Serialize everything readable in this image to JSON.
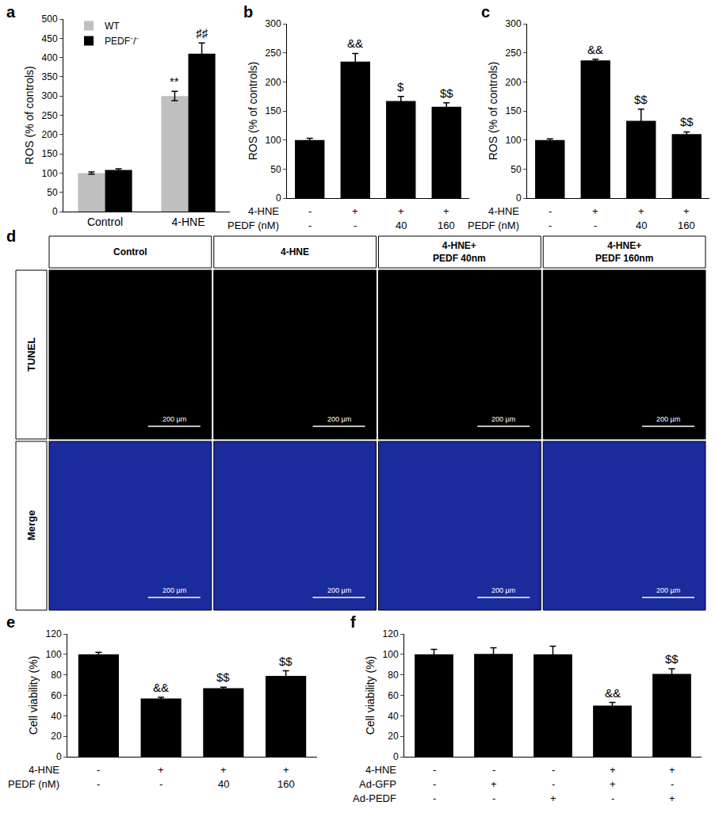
{
  "chart_data": [
    {
      "panel": "a",
      "type": "bar",
      "y_label": "ROS (% of controls)",
      "categories": [
        "Control",
        "4-HNE"
      ],
      "series": [
        {
          "name": "WT",
          "color": "#bfbfbf",
          "values": [
            100,
            300
          ],
          "errors": [
            3,
            12
          ],
          "significance": [
            null,
            "**"
          ]
        },
        {
          "name": "PEDF⁻/⁻",
          "color": "#000000",
          "values": [
            108,
            410
          ],
          "errors": [
            3,
            28
          ],
          "significance": [
            null,
            "♯♯"
          ]
        }
      ],
      "ylim": [
        0,
        500
      ],
      "yticks": [
        0,
        50,
        100,
        150,
        200,
        250,
        300,
        350,
        400,
        450,
        500
      ],
      "legend": "upper left",
      "grid": false
    },
    {
      "panel": "b",
      "type": "bar",
      "y_label": "ROS (% of controls)",
      "categories": [
        null,
        null,
        null,
        null
      ],
      "color": "#000000",
      "values": [
        100,
        235,
        167,
        157
      ],
      "errors": [
        3,
        14,
        8,
        7
      ],
      "significance": [
        null,
        "&&",
        "$",
        "$$"
      ],
      "treatments": [
        {
          "label": "4-HNE",
          "values": [
            "-",
            "+",
            "+",
            "+"
          ]
        },
        {
          "label": "PEDF (nM)",
          "values": [
            "-",
            "-",
            "40",
            "160"
          ]
        }
      ],
      "ylim": [
        0,
        300
      ],
      "yticks": [
        0,
        50,
        100,
        150,
        200,
        250,
        300
      ],
      "tick_labels": "y",
      "grid": false
    },
    {
      "panel": "c",
      "type": "bar",
      "y_label": "ROS (% of controls)",
      "categories": [
        null,
        null,
        null,
        null
      ],
      "color": "#000000",
      "values": [
        100,
        237,
        133,
        110
      ],
      "errors": [
        2,
        2,
        20,
        4
      ],
      "significance": [
        null,
        "&&",
        "$$",
        "$$"
      ],
      "treatments": [
        {
          "label": "4-HNE",
          "values": [
            "-",
            "+",
            "+",
            "+"
          ]
        },
        {
          "label": "PEDF (nM)",
          "values": [
            "-",
            "-",
            "40",
            "160"
          ]
        }
      ],
      "ylim": [
        0,
        300
      ],
      "yticks": [
        0,
        50,
        100,
        150,
        200,
        250,
        300
      ],
      "tick_labels": "y",
      "grid": false
    },
    {
      "panel": "d",
      "type": "image_grid",
      "columns": [
        [
          "Control"
        ],
        [
          "4-HNE"
        ],
        [
          "4-HNE+",
          "PEDF 40nm"
        ],
        [
          "4-HNE+",
          "PEDF 160nm"
        ]
      ],
      "rows": [
        {
          "label": "TUNEL",
          "color": "#000000"
        },
        {
          "label": "Merge",
          "color": "#1a2b9c"
        }
      ],
      "scale_bar": "200 µm"
    },
    {
      "panel": "e",
      "type": "bar",
      "y_label": "Cell viability (%)",
      "categories": [
        null,
        null,
        null,
        null
      ],
      "color": "#000000",
      "values": [
        100,
        57,
        67,
        79
      ],
      "errors": [
        2,
        1,
        1,
        5
      ],
      "significance": [
        null,
        "&&",
        "$$",
        "$$"
      ],
      "treatments": [
        {
          "label": "4-HNE",
          "values": [
            "-",
            "+",
            "+",
            "+"
          ]
        },
        {
          "label": "PEDF (nM)",
          "values": [
            "-",
            "-",
            "40",
            "160"
          ]
        }
      ],
      "ylim": [
        0,
        120
      ],
      "yticks": [
        0,
        20,
        40,
        60,
        80,
        100,
        120
      ],
      "tick_labels": "y",
      "grid": false
    },
    {
      "panel": "f",
      "type": "bar",
      "y_label": "Cell viability (%)",
      "categories": [
        null,
        null,
        null,
        null,
        null
      ],
      "color": "#000000",
      "values": [
        100,
        100.5,
        100,
        50,
        81
      ],
      "errors": [
        5,
        6,
        8,
        3,
        5
      ],
      "significance": [
        null,
        null,
        null,
        "&&",
        "$$"
      ],
      "treatments": [
        {
          "label": "4-HNE",
          "values": [
            "-",
            "-",
            "-",
            "+",
            "+"
          ]
        },
        {
          "label": "Ad-GFP",
          "values": [
            "-",
            "+",
            "-",
            "+",
            "-"
          ]
        },
        {
          "label": "Ad-PEDF",
          "values": [
            "-",
            "-",
            "+",
            "-",
            "+"
          ]
        }
      ],
      "ylim": [
        0,
        120
      ],
      "yticks": [
        0,
        20,
        40,
        60,
        80,
        100,
        120
      ],
      "tick_labels": "y",
      "grid": false
    }
  ]
}
